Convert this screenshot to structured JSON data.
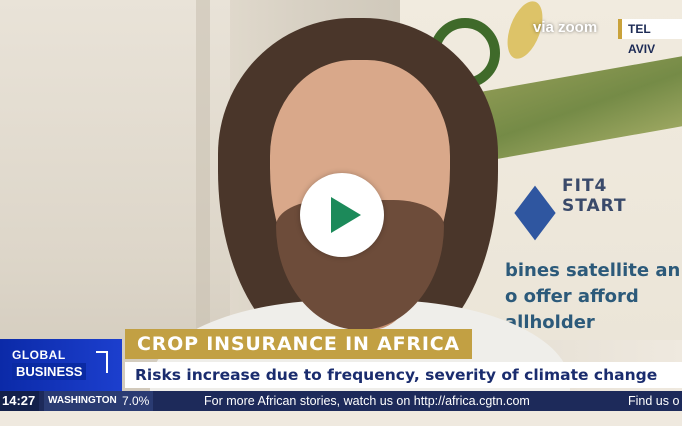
{
  "overlay": {
    "via_label": "via zoom",
    "location": "TEL AVIV"
  },
  "banner": {
    "fit4_line1": "FIT4",
    "fit4_line2": "START",
    "line1": "bines satellite an",
    "line2": "o offer afford",
    "line3": "allholder"
  },
  "show": {
    "name_line1": "GLOBAL",
    "name_line2": "BUSINESS"
  },
  "headline": {
    "title": "CROP INSURANCE IN AFRICA",
    "subtitle": "Risks increase due to frequency, severity of climate change"
  },
  "ticker": {
    "time": "14:27",
    "city": "WASHINGTON DC",
    "stock_value": "7.0%",
    "message": "For more African stories, watch us on http://africa.cgtn.com",
    "message_more": "Find us o"
  },
  "colors": {
    "play_accent": "#1c8a5a",
    "headline_gold": "#c2a043",
    "brand_blue": "#1c3fce",
    "ticker_navy": "#1d2a5a"
  },
  "icons": {
    "play": "play-icon"
  }
}
